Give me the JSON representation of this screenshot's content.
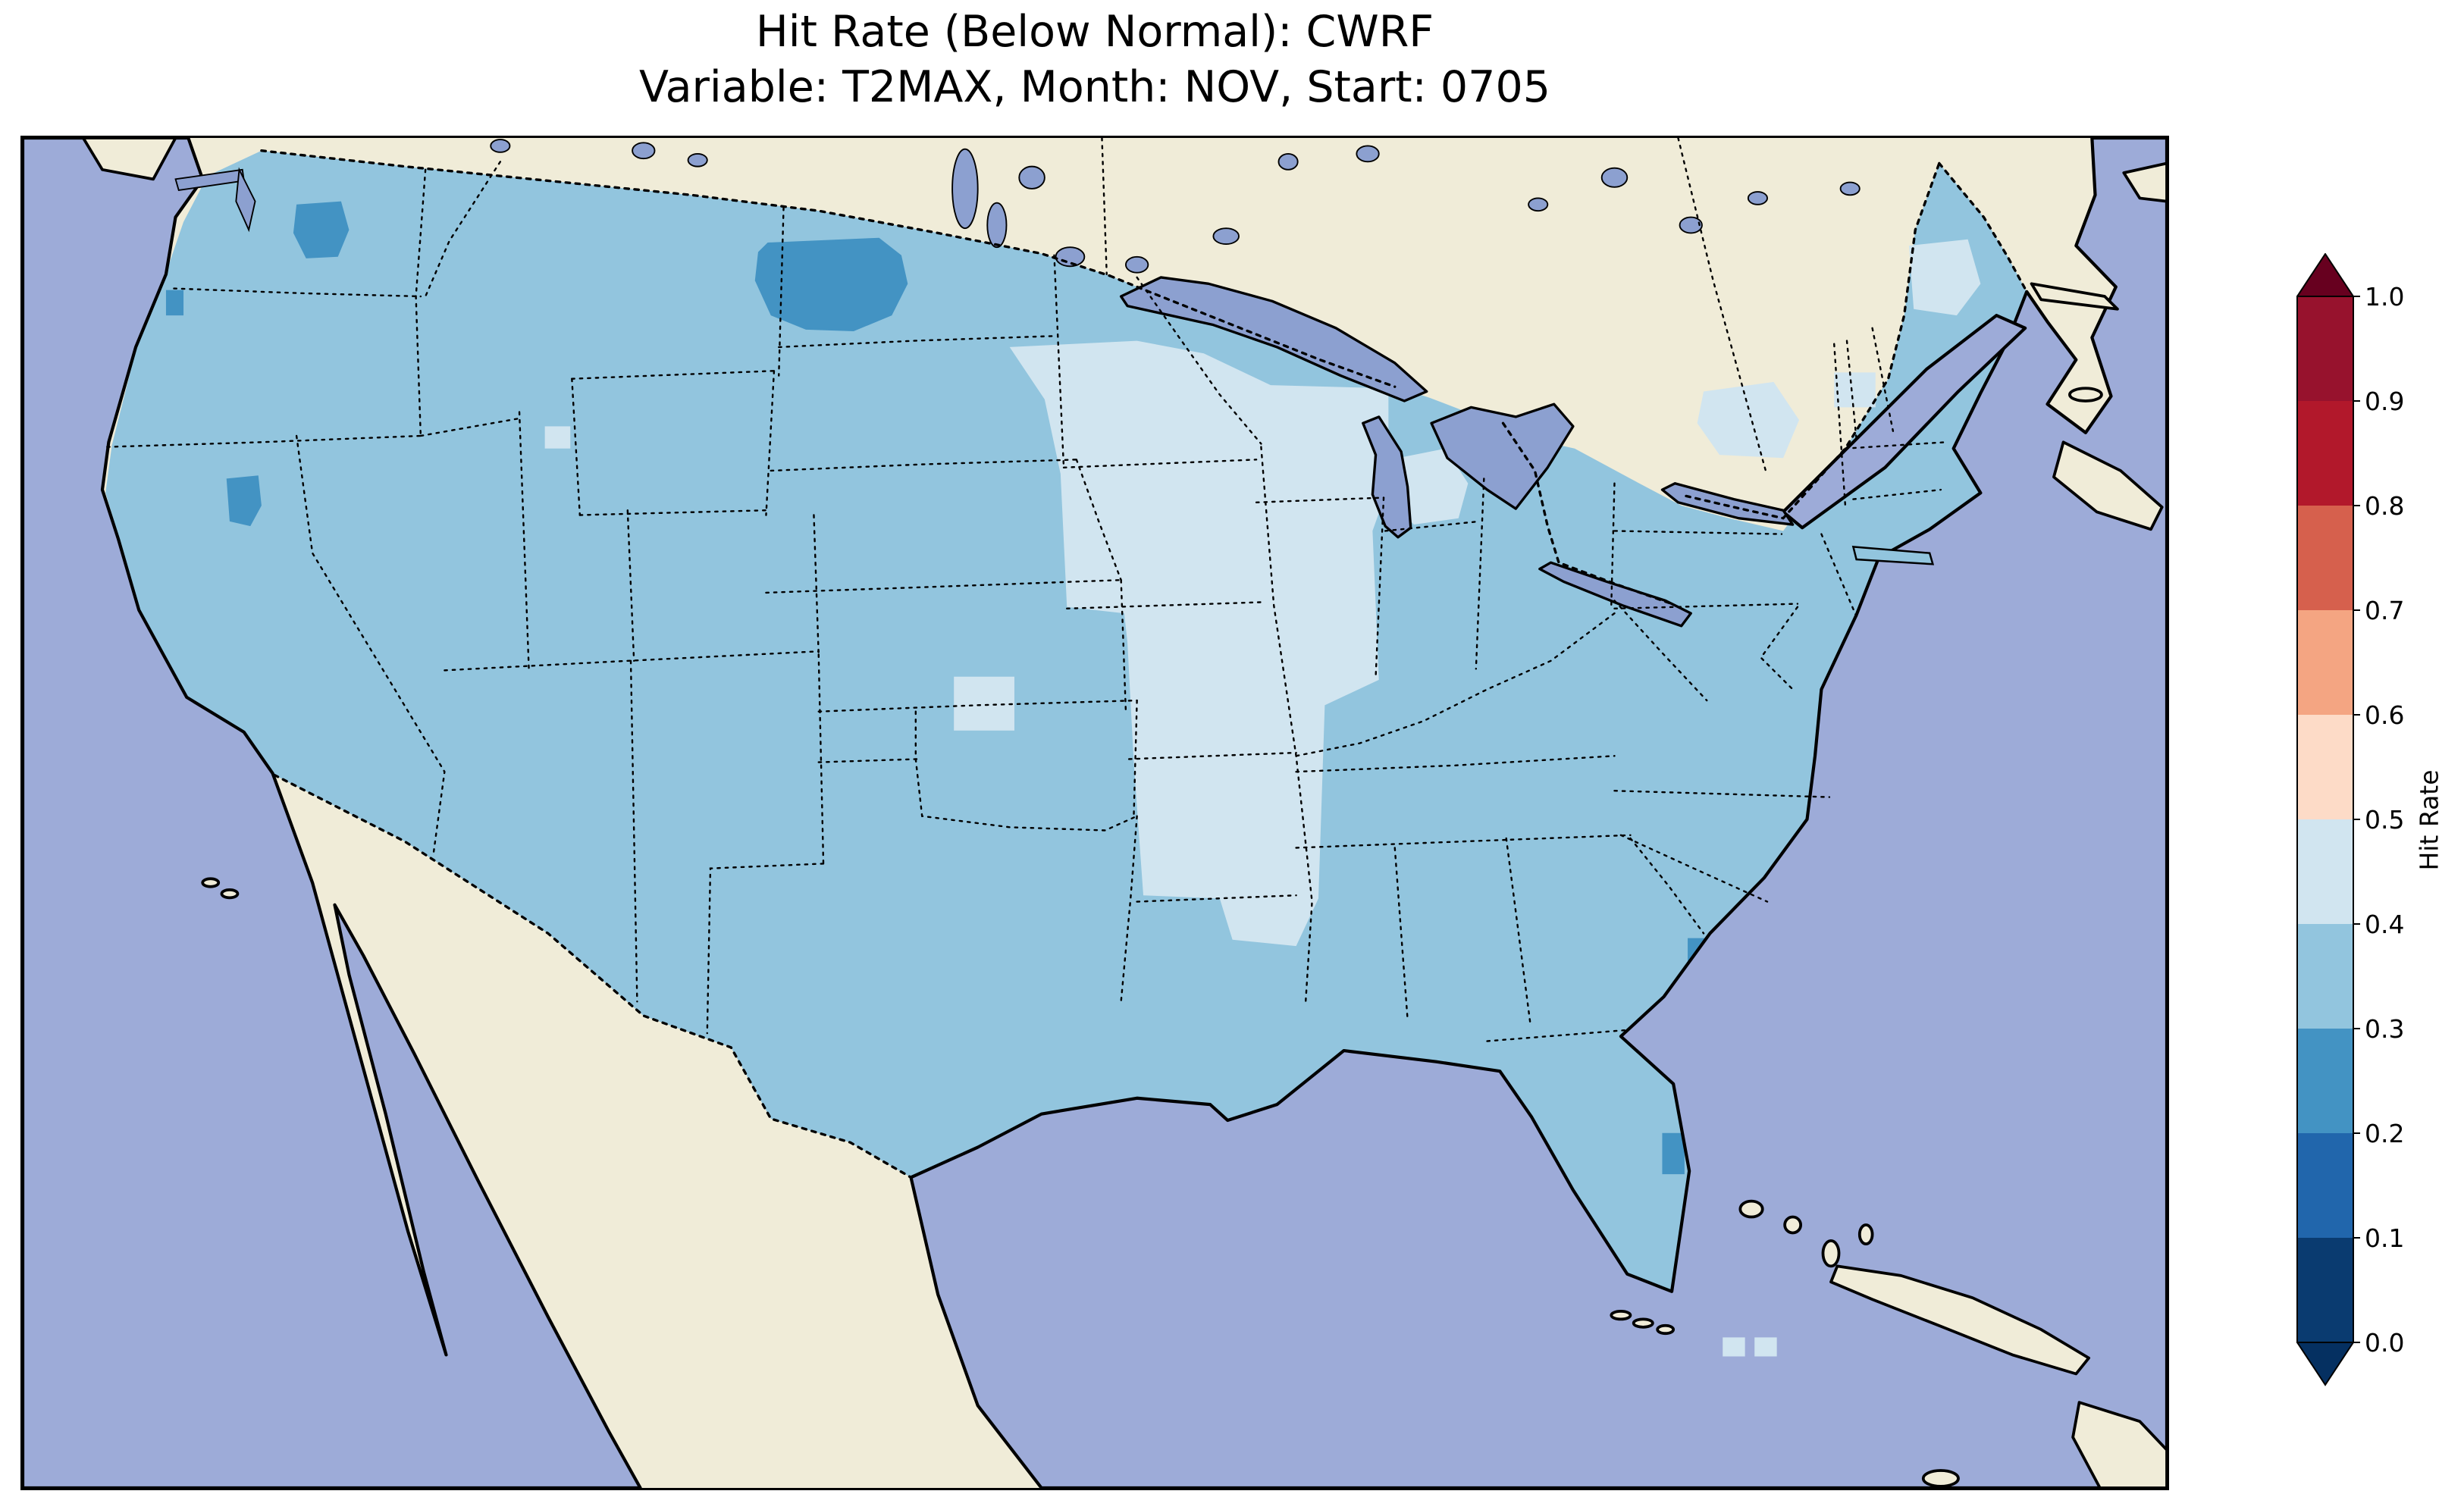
{
  "chart_data": {
    "type": "heatmap",
    "title": "Hit Rate (Below Normal): CWRF",
    "subtitle": "Variable: T2MAX, Month: NOV, Start: 0705",
    "model": "CWRF",
    "metric": "Hit Rate (Below Normal)",
    "variable": "T2MAX",
    "month": "NOV",
    "start": "0705",
    "geographic_domain": "Continental United States with surrounding Canada, Mexico, Gulf of Mexico and Atlantic",
    "colorbar": {
      "label": "Hit Rate",
      "orientation": "vertical",
      "extend": "both",
      "ticks_top_to_bottom": [
        "1.0",
        "0.9",
        "0.8",
        "0.7",
        "0.6",
        "0.5",
        "0.4",
        "0.3",
        "0.2",
        "0.1",
        "0.0"
      ],
      "over_color": "#67001f",
      "under_color": "#053061",
      "bins_top_to_bottom": [
        {
          "range": "0.9-1.0",
          "color": "#97122d"
        },
        {
          "range": "0.8-0.9",
          "color": "#b2182b"
        },
        {
          "range": "0.7-0.8",
          "color": "#d6604d"
        },
        {
          "range": "0.6-0.7",
          "color": "#f4a582"
        },
        {
          "range": "0.5-0.6",
          "color": "#fddbc7"
        },
        {
          "range": "0.4-0.5",
          "color": "#d1e5f0"
        },
        {
          "range": "0.3-0.4",
          "color": "#92c5de"
        },
        {
          "range": "0.2-0.3",
          "color": "#4393c3"
        },
        {
          "range": "0.1-0.2",
          "color": "#2166ac"
        },
        {
          "range": "0.0-0.1",
          "color": "#0a3b70"
        }
      ]
    },
    "regions": [
      {
        "hit_rate_bin": "0.3-0.4",
        "area": "Most of CONUS: Pacific states, Rockies, Great Plains, Texas, Gulf Coast states, Southeast, Mid-Atlantic and Northeast"
      },
      {
        "hit_rate_bin": "0.4-0.5",
        "area": "Upper Mississippi Valley and Corn Belt: southern Minnesota, Iowa, Missouri, Illinois, southern Wisconsin, Arkansas, northern Louisiana; also lower Michigan, upstate New York, patches in northern New England and Maine, small spots in south-central Kansas/Oklahoma and near Great Salt Lake"
      },
      {
        "hit_rate_bin": "0.2-0.3",
        "area": "Large patch over central North Dakota; north-central Washington; small spots in northern Nevada, coastal Washington, Georgia/South Carolina coast and Florida Atlantic coast"
      }
    ],
    "grid_on": false,
    "legend_position": "right colorbar"
  },
  "map": {
    "colors": {
      "ocean": "#9dabd8",
      "lake": "#8ca0d0",
      "land": "#f0ecd8",
      "coastline": "#000000",
      "background": "#ffffff"
    },
    "fills": {
      "conus_base": "#92c5de",
      "midwest_light": "#d1e5f0",
      "low_patches": "#4393c3"
    },
    "boundary_styles": {
      "coastlines": "solid black",
      "state_borders": "dotted black",
      "international_borders": "dotted black"
    }
  }
}
